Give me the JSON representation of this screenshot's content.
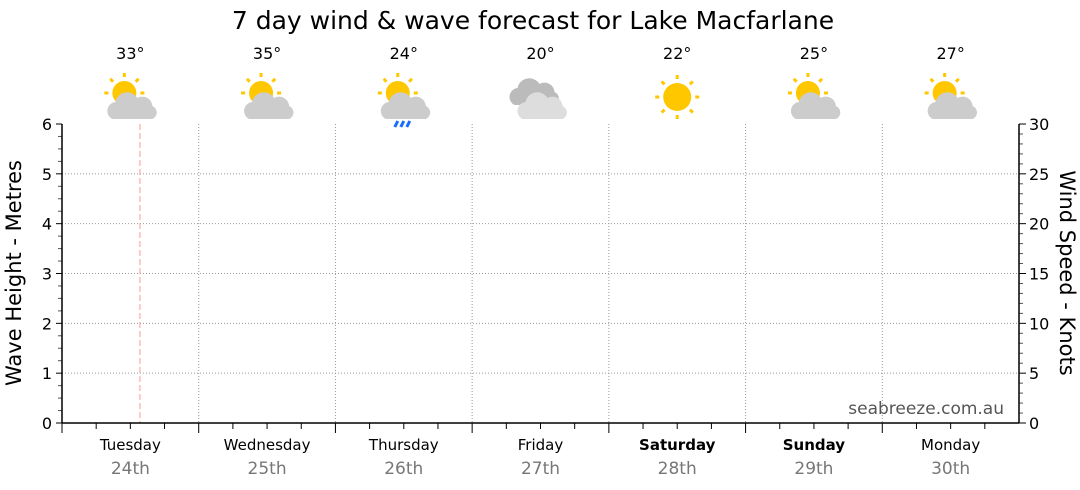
{
  "chart_data": {
    "type": "line",
    "title": "7 day wind & wave forecast for Lake Macfarlane",
    "ylabel_left": "Wave Height - Metres",
    "ylabel_right": "Wind Speed - Knots",
    "ylim_left": [
      0,
      6
    ],
    "ylim_right": [
      0,
      30
    ],
    "yticks_left": [
      "0",
      "1",
      "2",
      "3",
      "4",
      "5",
      "6"
    ],
    "yticks_right": [
      "0",
      "5",
      "10",
      "15",
      "20",
      "25",
      "30"
    ],
    "grid": true,
    "current_time_marker_day_fraction": 0.57,
    "days": [
      {
        "day": "Tuesday",
        "date": "24th",
        "temp": "33°",
        "icon": "partly-cloudy-icon",
        "bold": false
      },
      {
        "day": "Wednesday",
        "date": "25th",
        "temp": "35°",
        "icon": "partly-cloudy-icon",
        "bold": false
      },
      {
        "day": "Thursday",
        "date": "26th",
        "temp": "24°",
        "icon": "shower-icon",
        "bold": false
      },
      {
        "day": "Friday",
        "date": "27th",
        "temp": "20°",
        "icon": "cloudy-icon",
        "bold": false
      },
      {
        "day": "Saturday",
        "date": "28th",
        "temp": "22°",
        "icon": "sunny-icon",
        "bold": true
      },
      {
        "day": "Sunday",
        "date": "29th",
        "temp": "25°",
        "icon": "partly-cloudy-icon",
        "bold": true
      },
      {
        "day": "Monday",
        "date": "30th",
        "temp": "27°",
        "icon": "partly-cloudy-icon",
        "bold": false
      }
    ],
    "series": [],
    "watermark": "seabreeze.com.au",
    "colors": {
      "sun": "#ffc700",
      "cloud": "#cccccc",
      "cloud_dark": "#bbbbbb",
      "rain": "#1a6cff",
      "marker": "#ff9999",
      "grid": "#999999",
      "date": "#777777"
    }
  }
}
